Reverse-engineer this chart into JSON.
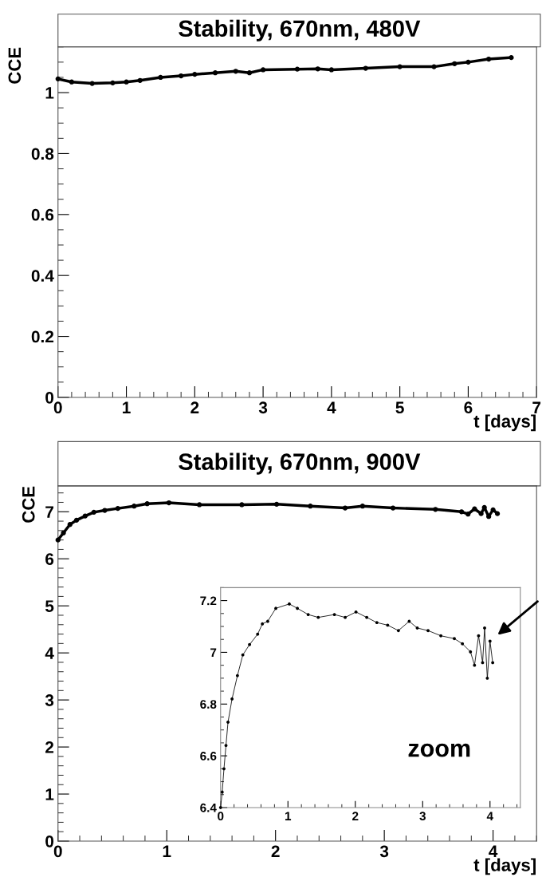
{
  "chart_data": [
    {
      "type": "line",
      "title": "Stability, 670nm, 480V",
      "xlabel": "t [days]",
      "ylabel": "CCE",
      "xlim": [
        0,
        7
      ],
      "xticks": [
        0,
        1,
        2,
        3,
        4,
        5,
        6,
        7
      ],
      "ylim": [
        0,
        1.15
      ],
      "yticks": [
        0,
        0.2,
        0.4,
        0.6,
        0.8,
        1
      ],
      "marker": "circle",
      "line_style": "solid",
      "grid": false,
      "legend": false,
      "series": [
        {
          "color": "#000000",
          "x": [
            0,
            0.2,
            0.5,
            0.8,
            1.0,
            1.2,
            1.5,
            1.8,
            2.0,
            2.3,
            2.6,
            2.8,
            3.0,
            3.5,
            3.8,
            4.0,
            4.5,
            5.0,
            5.5,
            5.8,
            6.0,
            6.3,
            6.63
          ],
          "values": [
            1.045,
            1.035,
            1.03,
            1.032,
            1.035,
            1.04,
            1.05,
            1.055,
            1.06,
            1.065,
            1.07,
            1.065,
            1.075,
            1.077,
            1.078,
            1.075,
            1.08,
            1.085,
            1.085,
            1.095,
            1.1,
            1.11,
            1.115
          ]
        }
      ]
    },
    {
      "type": "line",
      "title": "Stability, 670nm, 900V",
      "xlabel": "t [days]",
      "ylabel": "CCE",
      "xlim": [
        0,
        4.4
      ],
      "xticks": [
        0,
        1,
        2,
        3,
        4
      ],
      "ylim": [
        0,
        7.55
      ],
      "yticks": [
        0,
        1,
        2,
        3,
        4,
        5,
        6,
        7
      ],
      "marker": "circle",
      "line_style": "solid",
      "grid": false,
      "legend": false,
      "series": [
        {
          "color": "#000000",
          "x": [
            0,
            0.05,
            0.11,
            0.17,
            0.25,
            0.33,
            0.43,
            0.55,
            0.7,
            0.82,
            1.02,
            1.3,
            1.69,
            2.01,
            2.32,
            2.64,
            2.8,
            3.08,
            3.47,
            3.71,
            3.77,
            3.83,
            3.89,
            3.92,
            3.96,
            4.0,
            4.04
          ],
          "values": [
            6.4,
            6.55,
            6.73,
            6.82,
            6.91,
            6.99,
            7.03,
            7.07,
            7.12,
            7.17,
            7.19,
            7.15,
            7.15,
            7.16,
            7.12,
            7.08,
            7.12,
            7.08,
            7.05,
            7.0,
            6.95,
            7.06,
            6.96,
            7.09,
            6.9,
            7.04,
            6.96
          ]
        }
      ]
    },
    {
      "type": "line",
      "xlim": [
        0,
        4.45
      ],
      "xticks": [
        0,
        1,
        2,
        3,
        4
      ],
      "ylim": [
        6.4,
        7.25
      ],
      "yticks": [
        6.4,
        6.6,
        6.8,
        7,
        7.2
      ],
      "marker": "circle",
      "line_style": "solid",
      "grid": false,
      "legend": false,
      "annotations": [
        "zoom"
      ],
      "series": [
        {
          "color": "#000000",
          "x": [
            0,
            0.024,
            0.05,
            0.08,
            0.11,
            0.17,
            0.25,
            0.33,
            0.43,
            0.55,
            0.62,
            0.7,
            0.82,
            1.02,
            1.14,
            1.3,
            1.45,
            1.69,
            1.85,
            2.01,
            2.17,
            2.32,
            2.48,
            2.64,
            2.8,
            2.92,
            3.08,
            3.27,
            3.47,
            3.59,
            3.71,
            3.77,
            3.83,
            3.89,
            3.92,
            3.96,
            4.0,
            4.04
          ],
          "values": [
            6.4,
            6.46,
            6.55,
            6.64,
            6.73,
            6.82,
            6.91,
            6.99,
            7.03,
            7.07,
            7.11,
            7.12,
            7.17,
            7.187,
            7.17,
            7.146,
            7.135,
            7.146,
            7.135,
            7.156,
            7.135,
            7.115,
            7.105,
            7.084,
            7.12,
            7.094,
            7.084,
            7.064,
            7.053,
            7.033,
            7.002,
            6.95,
            7.064,
            6.96,
            7.094,
            6.9,
            7.043,
            6.96
          ]
        }
      ]
    }
  ]
}
